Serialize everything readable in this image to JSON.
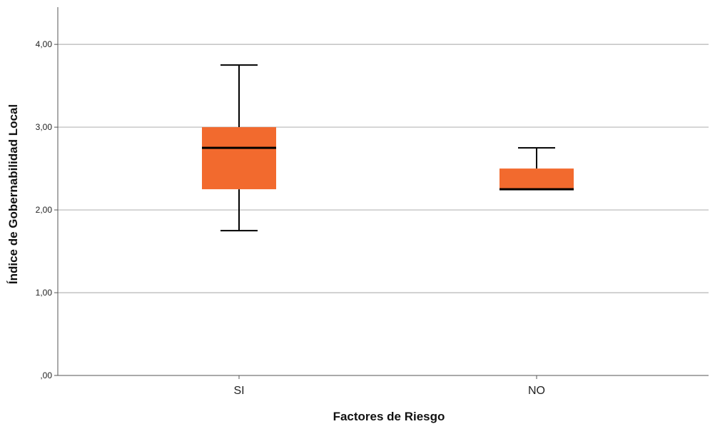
{
  "chart_data": {
    "type": "box",
    "xlabel": "Factores de Riesgo",
    "ylabel": "Índice de Gobernabilidad Local",
    "ylim": [
      0,
      4.45
    ],
    "yticks": [
      0,
      1,
      2,
      3,
      4
    ],
    "ytick_labels": [
      ",00",
      "1,00",
      "2,00",
      "3,00",
      "4,00"
    ],
    "grid": "horizontal",
    "categories": [
      "SI",
      "NO"
    ],
    "boxes": [
      {
        "category": "SI",
        "whisker_low": 1.75,
        "q1": 2.25,
        "median": 2.75,
        "q3": 3.0,
        "whisker_high": 3.75
      },
      {
        "category": "NO",
        "whisker_low": 2.25,
        "q1": 2.25,
        "median": 2.25,
        "q3": 2.5,
        "whisker_high": 2.75
      }
    ],
    "colors": {
      "box_fill": "#f26a2e",
      "median": "#000000",
      "grid": "#bdbdbd",
      "axis": "#555555"
    }
  }
}
